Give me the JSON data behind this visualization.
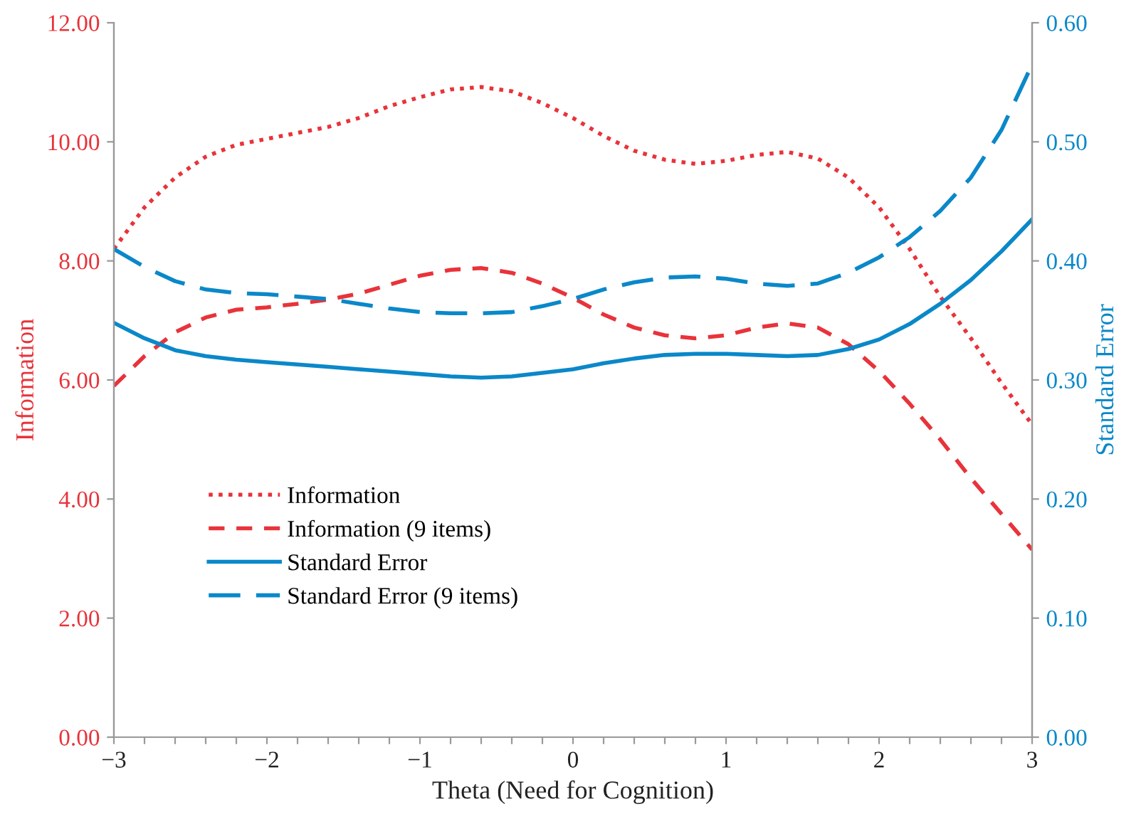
{
  "chart_data": {
    "type": "line",
    "xlabel": "Theta (Need for Cognition)",
    "ylabel": "Information",
    "y2label": "Standard Error",
    "x": [
      -3,
      -2.8,
      -2.6,
      -2.4,
      -2.2,
      -2,
      -1.8,
      -1.6,
      -1.4,
      -1.2,
      -1,
      -0.8,
      -0.6,
      -0.4,
      -0.2,
      0,
      0.2,
      0.4,
      0.6,
      0.8,
      1,
      1.2,
      1.4,
      1.6,
      1.8,
      2,
      2.2,
      2.4,
      2.6,
      2.8,
      3
    ],
    "series": [
      {
        "name": "Information",
        "color": "#e8333a",
        "line_style": "dotted",
        "values": [
          8.2,
          8.9,
          9.4,
          9.75,
          9.95,
          10.05,
          10.15,
          10.25,
          10.4,
          10.6,
          10.75,
          10.88,
          10.92,
          10.85,
          10.65,
          10.4,
          10.1,
          9.85,
          9.7,
          9.63,
          9.68,
          9.78,
          9.83,
          9.72,
          9.4,
          8.9,
          8.2,
          7.4,
          6.7,
          5.95,
          5.25
        ]
      },
      {
        "name": "Information (9 items)",
        "color": "#e8333a",
        "line_style": "dashed",
        "values": [
          5.9,
          6.4,
          6.8,
          7.05,
          7.18,
          7.22,
          7.28,
          7.35,
          7.45,
          7.6,
          7.75,
          7.85,
          7.88,
          7.8,
          7.62,
          7.38,
          7.1,
          6.88,
          6.75,
          6.7,
          6.75,
          6.88,
          6.95,
          6.88,
          6.6,
          6.15,
          5.6,
          5.0,
          4.35,
          3.75,
          3.15
        ]
      },
      {
        "name": "Standard Error",
        "color": "#0a88c9",
        "line_style": "solid",
        "axis": "y2",
        "values": [
          0.348,
          0.335,
          0.325,
          0.32,
          0.317,
          0.315,
          0.313,
          0.311,
          0.309,
          0.307,
          0.305,
          0.303,
          0.302,
          0.303,
          0.306,
          0.309,
          0.314,
          0.318,
          0.321,
          0.322,
          0.322,
          0.321,
          0.32,
          0.321,
          0.326,
          0.334,
          0.347,
          0.364,
          0.384,
          0.408,
          0.435
        ]
      },
      {
        "name": "Standard Error (9 items)",
        "color": "#0a88c9",
        "line_style": "longdash",
        "axis": "y2",
        "values": [
          0.41,
          0.395,
          0.383,
          0.376,
          0.373,
          0.372,
          0.37,
          0.368,
          0.364,
          0.36,
          0.357,
          0.356,
          0.356,
          0.357,
          0.362,
          0.368,
          0.376,
          0.382,
          0.386,
          0.387,
          0.385,
          0.381,
          0.379,
          0.381,
          0.39,
          0.403,
          0.42,
          0.442,
          0.47,
          0.51,
          0.565
        ]
      }
    ],
    "xlim": [
      -3,
      3
    ],
    "xticks": [
      {
        "value": -3,
        "label": "−3"
      },
      {
        "value": -2.8,
        "label": null
      },
      {
        "value": -2.6,
        "label": null
      },
      {
        "value": -2.4,
        "label": null
      },
      {
        "value": -2.2,
        "label": null
      },
      {
        "value": -2,
        "label": "−2"
      },
      {
        "value": -1.8,
        "label": null
      },
      {
        "value": -1.6,
        "label": null
      },
      {
        "value": -1.4,
        "label": null
      },
      {
        "value": -1.2,
        "label": null
      },
      {
        "value": -1,
        "label": "−1"
      },
      {
        "value": -0.8,
        "label": null
      },
      {
        "value": -0.6,
        "label": null
      },
      {
        "value": -0.4,
        "label": null
      },
      {
        "value": -0.2,
        "label": null
      },
      0,
      {
        "value": 0.2,
        "label": null
      },
      {
        "value": 0.4,
        "label": null
      },
      {
        "value": 0.6,
        "label": null
      },
      {
        "value": 0.8,
        "label": null
      },
      1,
      {
        "value": 1.2,
        "label": null
      },
      {
        "value": 1.4,
        "label": null
      },
      {
        "value": 1.6,
        "label": null
      },
      {
        "value": 1.8,
        "label": null
      },
      2,
      {
        "value": 2.2,
        "label": null
      },
      {
        "value": 2.4,
        "label": null
      },
      {
        "value": 2.6,
        "label": null
      },
      {
        "value": 2.8,
        "label": null
      },
      3
    ],
    "ylim": [
      0,
      12
    ],
    "yticks": [
      {
        "value": 0,
        "label": "0.00"
      },
      {
        "value": 2,
        "label": "2.00"
      },
      {
        "value": 4,
        "label": "4.00"
      },
      {
        "value": 6,
        "label": "6.00"
      },
      {
        "value": 8,
        "label": "8.00"
      },
      {
        "value": 10,
        "label": "10.00"
      },
      {
        "value": 12,
        "label": "12.00"
      }
    ],
    "y2lim": [
      0,
      0.6
    ],
    "y2ticks": [
      {
        "value": 0,
        "label": "0.00"
      },
      {
        "value": 0.1,
        "label": "0.10"
      },
      {
        "value": 0.2,
        "label": "0.20"
      },
      {
        "value": 0.3,
        "label": "0.30"
      },
      {
        "value": 0.4,
        "label": "0.40"
      },
      {
        "value": 0.5,
        "label": "0.50"
      },
      {
        "value": 0.6,
        "label": "0.60"
      }
    ],
    "legend": "bottom left",
    "grid": false
  }
}
